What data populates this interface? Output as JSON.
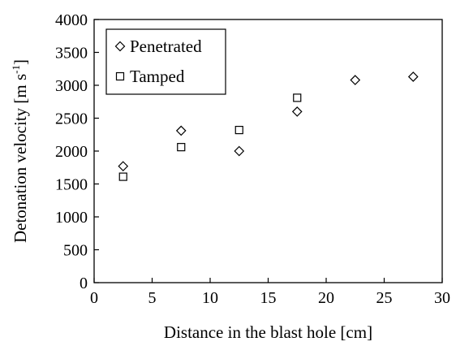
{
  "chart_data": {
    "type": "scatter",
    "title": "",
    "xlabel": "Distance in the blast hole [cm]",
    "ylabel_main": "Detonation velocity [m s",
    "ylabel_sup": "-1",
    "ylabel_close": "]",
    "xlim": [
      0,
      30
    ],
    "ylim": [
      0,
      4000
    ],
    "xticks": [
      0,
      5,
      10,
      15,
      20,
      25,
      30
    ],
    "yticks": [
      0,
      500,
      1000,
      1500,
      2000,
      2500,
      3000,
      3500,
      4000
    ],
    "grid": false,
    "legend_position": "top-left",
    "series": [
      {
        "name": "Penetrated",
        "marker": "diamond",
        "color": "#000000",
        "points": [
          {
            "x": 2.5,
            "y": 1770
          },
          {
            "x": 7.5,
            "y": 2310
          },
          {
            "x": 12.5,
            "y": 2000
          },
          {
            "x": 17.5,
            "y": 2600
          },
          {
            "x": 22.5,
            "y": 3080
          },
          {
            "x": 27.5,
            "y": 3130
          }
        ]
      },
      {
        "name": "Tamped",
        "marker": "square",
        "color": "#000000",
        "points": [
          {
            "x": 2.5,
            "y": 1610
          },
          {
            "x": 7.5,
            "y": 2060
          },
          {
            "x": 12.5,
            "y": 2320
          },
          {
            "x": 17.5,
            "y": 2810
          }
        ]
      }
    ]
  }
}
